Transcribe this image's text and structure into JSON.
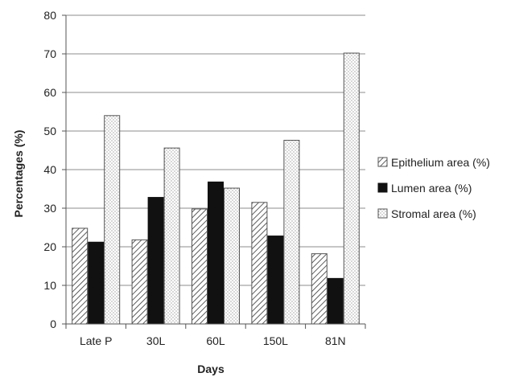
{
  "chart_data": {
    "type": "bar",
    "title": "",
    "xlabel": "Days",
    "ylabel": "Percentages (%)",
    "ylim": [
      0,
      80
    ],
    "yticks": [
      0,
      10,
      20,
      30,
      40,
      50,
      60,
      70,
      80
    ],
    "grid": true,
    "legend_position": "right",
    "categories": [
      "Late P",
      "30L",
      "60L",
      "150L",
      "81N"
    ],
    "series": [
      {
        "name": "Epithelium area (%)",
        "pattern": "diagonal-hatch",
        "color": "#222222",
        "values": [
          24.8,
          21.8,
          29.8,
          31.5,
          18.2
        ]
      },
      {
        "name": "Lumen area (%)",
        "pattern": "solid",
        "color": "#111111",
        "values": [
          21.2,
          32.8,
          36.8,
          22.8,
          11.8
        ]
      },
      {
        "name": "Stromal area (%)",
        "pattern": "dotted",
        "color": "#333333",
        "values": [
          54.0,
          45.6,
          35.2,
          47.6,
          70.2
        ]
      }
    ]
  }
}
